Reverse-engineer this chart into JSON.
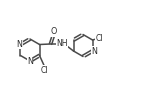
{
  "bg_color": "#ffffff",
  "line_color": "#4a4a4a",
  "text_color": "#2a2a2a",
  "line_width": 1.1,
  "font_size": 5.8,
  "figsize": [
    1.46,
    1.03
  ],
  "dpi": 100,
  "xlim": [
    0,
    14.6
  ],
  "ylim": [
    0,
    10.3
  ]
}
